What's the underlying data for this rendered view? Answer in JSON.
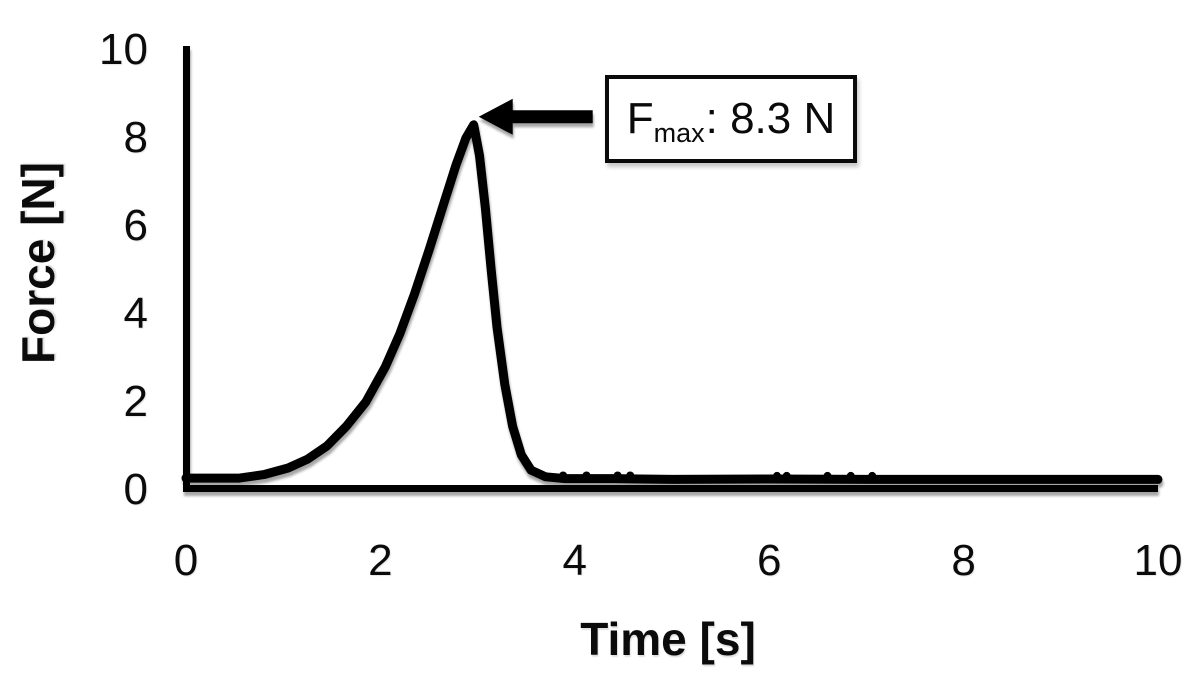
{
  "page": {
    "background": "#ffffff",
    "line_color": "#000000"
  },
  "chart_data": {
    "type": "line",
    "title": "",
    "xlabel": "Time [s]",
    "ylabel": "Force [N]",
    "xlim": [
      0,
      10
    ],
    "ylim": [
      0,
      10
    ],
    "xticks": [
      "0",
      "2",
      "4",
      "6",
      "8",
      "10"
    ],
    "yticks": [
      "0",
      "2",
      "4",
      "6",
      "8",
      "10"
    ],
    "grid": false,
    "legend": null,
    "series": [
      {
        "name": "force-vs-time",
        "color": "#000000",
        "points": [
          [
            0,
            0.27
          ],
          [
            0.55,
            0.27
          ],
          [
            0.8,
            0.35
          ],
          [
            1.05,
            0.5
          ],
          [
            1.25,
            0.7
          ],
          [
            1.45,
            1.0
          ],
          [
            1.65,
            1.45
          ],
          [
            1.85,
            2.0
          ],
          [
            2.05,
            2.8
          ],
          [
            2.2,
            3.55
          ],
          [
            2.35,
            4.45
          ],
          [
            2.5,
            5.45
          ],
          [
            2.65,
            6.5
          ],
          [
            2.78,
            7.4
          ],
          [
            2.88,
            8.0
          ],
          [
            2.96,
            8.3
          ],
          [
            3.02,
            7.6
          ],
          [
            3.08,
            6.4
          ],
          [
            3.14,
            5.0
          ],
          [
            3.2,
            3.7
          ],
          [
            3.28,
            2.4
          ],
          [
            3.36,
            1.45
          ],
          [
            3.45,
            0.8
          ],
          [
            3.55,
            0.45
          ],
          [
            3.7,
            0.3
          ],
          [
            3.9,
            0.26
          ],
          [
            4.4,
            0.26
          ],
          [
            5.0,
            0.24
          ],
          [
            6.0,
            0.25
          ],
          [
            7.0,
            0.24
          ],
          [
            8.0,
            0.24
          ],
          [
            9.0,
            0.24
          ],
          [
            10.0,
            0.24
          ]
        ]
      }
    ],
    "noise_dots": [
      [
        3.88,
        0.33
      ],
      [
        4.12,
        0.33
      ],
      [
        4.44,
        0.33
      ],
      [
        4.57,
        0.33
      ],
      [
        6.08,
        0.32
      ],
      [
        6.18,
        0.32
      ],
      [
        6.6,
        0.32
      ],
      [
        6.84,
        0.32
      ],
      [
        7.06,
        0.32
      ]
    ],
    "peak": {
      "t": 2.96,
      "force": 8.3
    },
    "annotation": {
      "main": "F",
      "sub": "max",
      "rest": ": 8.3 N"
    }
  }
}
